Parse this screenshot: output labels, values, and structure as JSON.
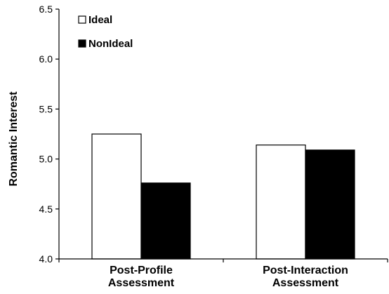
{
  "chart_data": {
    "type": "bar",
    "title": "",
    "xlabel": "",
    "ylabel": "Romantic Interest",
    "ylim": [
      4.0,
      6.5
    ],
    "yticks": [
      "4.0",
      "4.5",
      "5.0",
      "5.5",
      "6.0",
      "6.5"
    ],
    "grid": false,
    "legend_position": "top-left",
    "categories": [
      [
        "Post-Profile",
        "Assessment"
      ],
      [
        "Post-Interaction",
        "Assessment"
      ]
    ],
    "series": [
      {
        "name": "Ideal",
        "values": [
          5.25,
          5.14
        ],
        "color": "#ffffff"
      },
      {
        "name": "NonIdeal",
        "values": [
          4.76,
          5.09
        ],
        "color": "#000000"
      }
    ]
  }
}
